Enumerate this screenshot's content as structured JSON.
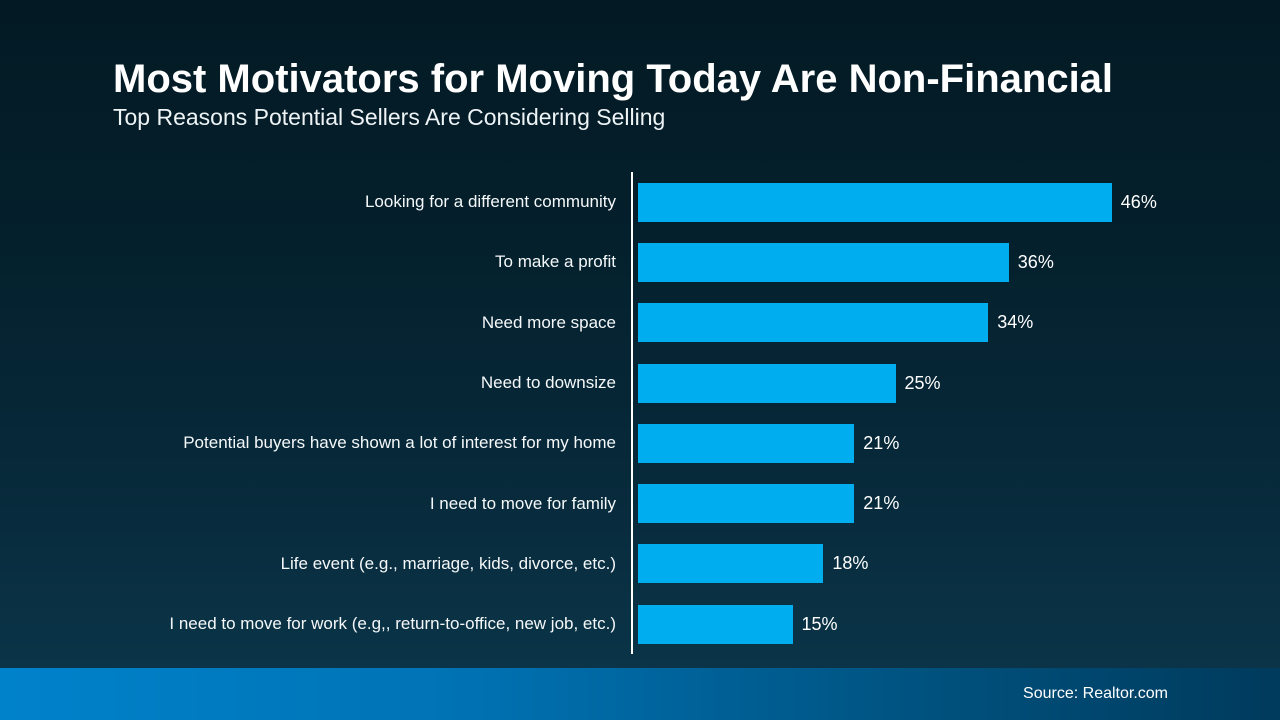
{
  "page": {
    "title": "Most Motivators for Moving Today Are Non-Financial",
    "subtitle": "Top Reasons Potential Sellers Are Considering Selling",
    "source": "Source: Realtor.com"
  },
  "colors": {
    "bar": "#00aeef",
    "background_top": "#031a24",
    "background_bottom": "#0b3448",
    "footer_gradient_left": "#0082cb",
    "footer_gradient_right": "#003a5c",
    "axis_line": "#ffffff",
    "text": "#ffffff"
  },
  "chart_data": {
    "type": "bar",
    "orientation": "horizontal",
    "title": "Most Motivators for Moving Today Are Non-Financial",
    "subtitle": "Top Reasons Potential Sellers Are Considering Selling",
    "categories": [
      "Looking for a different community",
      "To make a profit",
      "Need more space",
      "Need to downsize",
      "Potential buyers have shown a lot of interest for my home",
      "I need to move for family",
      "Life event (e.g., marriage, kids, divorce, etc.)",
      "I need to move for work (e.g,, return-to-office, new job, etc.)"
    ],
    "values": [
      46,
      36,
      34,
      25,
      21,
      21,
      18,
      15
    ],
    "value_labels": [
      "46%",
      "36%",
      "34%",
      "25%",
      "21%",
      "21%",
      "18%",
      "15%"
    ],
    "unit": "percent",
    "xlim": [
      0,
      50
    ],
    "grid": false,
    "legend": false,
    "bar_color": "#00aeef",
    "source": "Source: Realtor.com"
  }
}
